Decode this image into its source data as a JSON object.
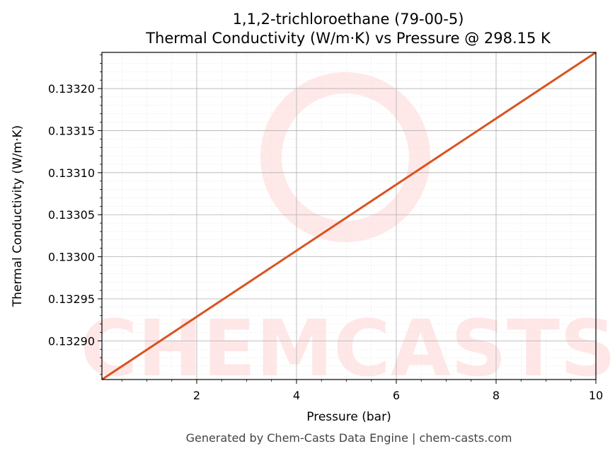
{
  "chart_data": {
    "type": "line",
    "title": "1,1,2-trichloroethane (79-00-5)",
    "subtitle": "Thermal Conductivity (W/m·K) vs Pressure @ 298.15 K",
    "xlabel": "Pressure (bar)",
    "ylabel": "Thermal Conductivity (W/m·K)",
    "xlim": [
      0.1,
      10
    ],
    "ylim": [
      0.132854,
      0.133243
    ],
    "xticks": [
      2,
      4,
      6,
      8,
      10
    ],
    "xtick_labels": [
      "2",
      "4",
      "6",
      "8",
      "10"
    ],
    "yticks": [
      0.1329,
      0.13295,
      0.133,
      0.13305,
      0.1331,
      0.13315,
      0.1332
    ],
    "ytick_labels": [
      "0.13290",
      "0.13295",
      "0.13300",
      "0.13305",
      "0.13310",
      "0.13315",
      "0.13320"
    ],
    "grid": true,
    "series": [
      {
        "x": [
          0.1,
          10
        ],
        "y": [
          0.132854,
          0.133243
        ],
        "color": "#d9531e"
      }
    ]
  },
  "footer": "Generated by Chem-Casts Data Engine | chem-casts.com",
  "watermark": "CHEMCASTS"
}
